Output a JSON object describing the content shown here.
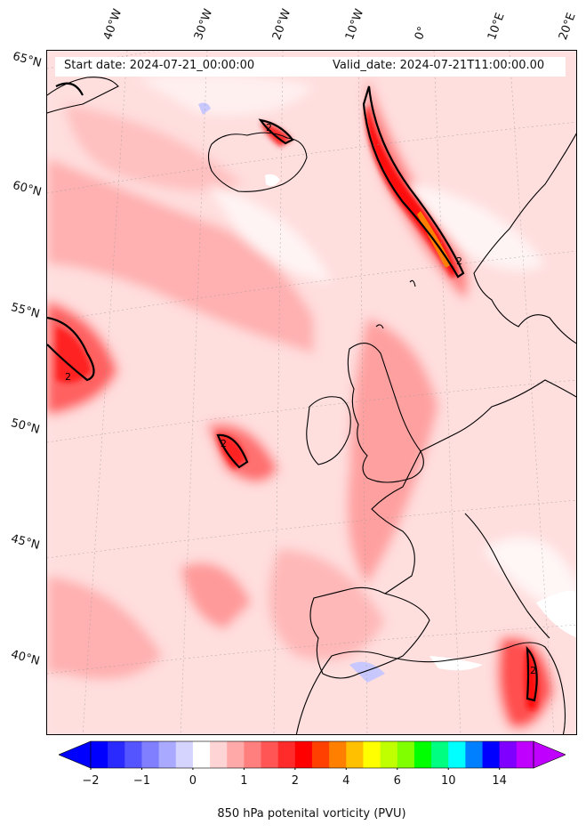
{
  "header": {
    "start_date": "Start date: 2024-07-21_00:00:00",
    "valid_date": "Valid_date: 2024-07-21T11:00:00.00"
  },
  "lat_labels": [
    "65°N",
    "60°N",
    "55°N",
    "50°N",
    "45°N",
    "40°N"
  ],
  "lon_labels": [
    "40°W",
    "30°W",
    "20°W",
    "10°W",
    "0°",
    "10°E",
    "20°E"
  ],
  "colorbar": {
    "label": "850 hPa potenital vorticity (PVU)",
    "ticks": [
      "−2",
      "−1",
      "0",
      "1",
      "2",
      "4",
      "6",
      "10",
      "14"
    ],
    "colors": [
      "#0000ff",
      "#2a2aff",
      "#5555ff",
      "#7f7fff",
      "#a9a9ff",
      "#d4d4ff",
      "#ffffff",
      "#ffd4d4",
      "#ffa9a9",
      "#ff7f7f",
      "#ff5555",
      "#ff2a2a",
      "#ff0000",
      "#ff4000",
      "#ff8000",
      "#ffc000",
      "#ffff00",
      "#c0ff00",
      "#80ff00",
      "#00ff00",
      "#00ff80",
      "#00ffff",
      "#0080ff",
      "#0000ff",
      "#8000ff",
      "#c000ff"
    ]
  },
  "contour_label": "2"
}
